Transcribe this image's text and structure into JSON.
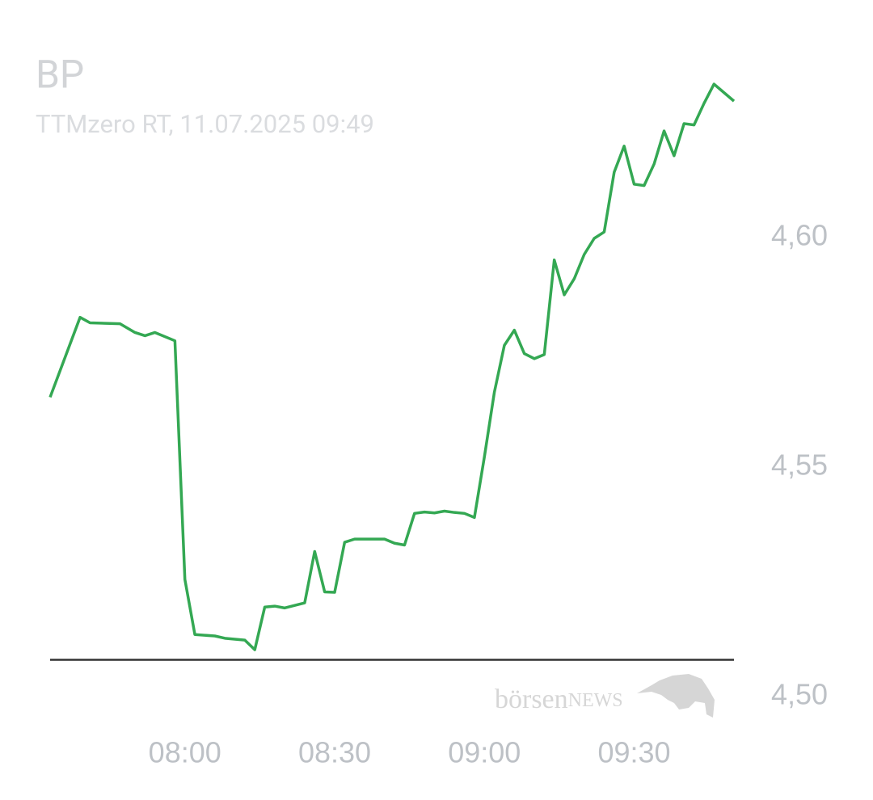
{
  "chart_data": {
    "type": "line",
    "title": "BP",
    "subtitle": "TTMzero RT, 11.07.2025 09:49",
    "watermark": [
      "börsen",
      "NEWS"
    ],
    "x": [
      "07:33",
      "07:39",
      "07:41",
      "07:47",
      "07:50",
      "07:52",
      "07:54",
      "07:58",
      "08:00",
      "08:02",
      "08:06",
      "08:08",
      "08:12",
      "08:14",
      "08:16",
      "08:18",
      "08:20",
      "08:24",
      "08:26",
      "08:28",
      "08:30",
      "08:32",
      "08:34",
      "08:40",
      "08:42",
      "08:44",
      "08:46",
      "08:48",
      "08:50",
      "08:52",
      "08:54",
      "08:56",
      "08:58",
      "09:00",
      "09:02",
      "09:04",
      "09:06",
      "09:08",
      "09:10",
      "09:12",
      "09:14",
      "09:16",
      "09:18",
      "09:20",
      "09:22",
      "09:24",
      "09:26",
      "09:28",
      "09:30",
      "09:32",
      "09:34",
      "09:36",
      "09:38",
      "09:40",
      "09:42",
      "09:44",
      "09:46",
      "09:50"
    ],
    "series": [
      {
        "color": "#34a853",
        "values": [
          4.5652,
          4.5826,
          4.5814,
          4.5812,
          4.5793,
          4.5786,
          4.5793,
          4.5775,
          4.5255,
          4.5135,
          4.5132,
          4.5127,
          4.5123,
          4.5102,
          4.5195,
          4.5197,
          4.5193,
          4.5204,
          4.5316,
          4.5228,
          4.5227,
          4.5336,
          4.5343,
          4.5343,
          4.5334,
          4.533,
          4.5399,
          4.5402,
          4.54,
          4.5404,
          4.5401,
          4.5399,
          4.539,
          4.5522,
          4.5663,
          4.5765,
          4.5798,
          4.5747,
          4.5736,
          4.5745,
          4.5951,
          4.5875,
          4.591,
          4.5963,
          4.5998,
          4.6012,
          4.6142,
          4.6199,
          4.6116,
          4.6113,
          4.616,
          4.6232,
          4.6178,
          4.6248,
          4.6245,
          4.6292,
          4.6334,
          4.6297
        ]
      }
    ],
    "reference_line": {
      "value": 4.508,
      "color": "#333333"
    },
    "xlim": [
      "07:33",
      "09:50"
    ],
    "xticks": [
      "08:00",
      "08:30",
      "09:00",
      "09:30"
    ],
    "ylim": [
      4.5,
      4.635
    ],
    "yticks": [
      {
        "value": 4.5,
        "label": "4,50"
      },
      {
        "value": 4.55,
        "label": "4,55"
      },
      {
        "value": 4.6,
        "label": "4,60"
      }
    ]
  }
}
